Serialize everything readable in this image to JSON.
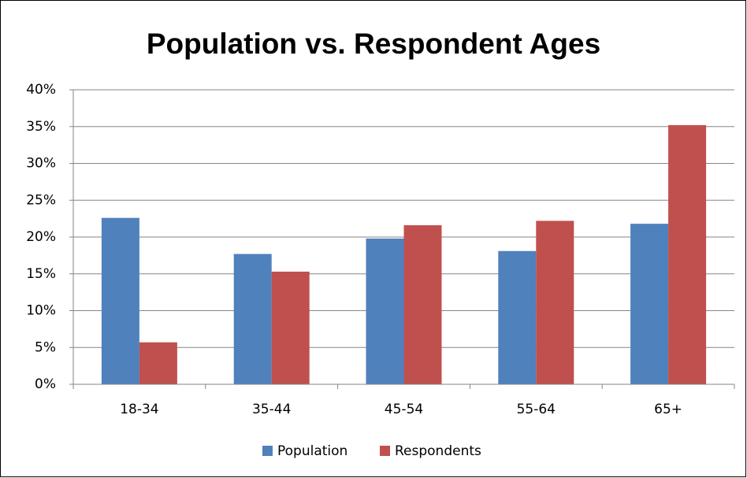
{
  "chart_data": {
    "type": "bar",
    "title": "Population vs. Respondent Ages",
    "categories": [
      "18-34",
      "35-44",
      "45-54",
      "55-64",
      "65+"
    ],
    "series": [
      {
        "name": "Population",
        "color": "#4f81bd",
        "values": [
          22.6,
          17.7,
          19.8,
          18.1,
          21.8
        ]
      },
      {
        "name": "Respondents",
        "color": "#c0504d",
        "values": [
          5.7,
          15.3,
          21.6,
          22.2,
          35.2
        ]
      }
    ],
    "ylim": [
      0,
      40
    ],
    "yticks": [
      {
        "value": 0,
        "label": "0%"
      },
      {
        "value": 5,
        "label": "5%"
      },
      {
        "value": 10,
        "label": "10%"
      },
      {
        "value": 15,
        "label": "15%"
      },
      {
        "value": 20,
        "label": "20%"
      },
      {
        "value": 25,
        "label": "25%"
      },
      {
        "value": 30,
        "label": "30%"
      },
      {
        "value": 35,
        "label": "35%"
      },
      {
        "value": 40,
        "label": "40%"
      }
    ],
    "grid": true,
    "legend": "bottom"
  }
}
